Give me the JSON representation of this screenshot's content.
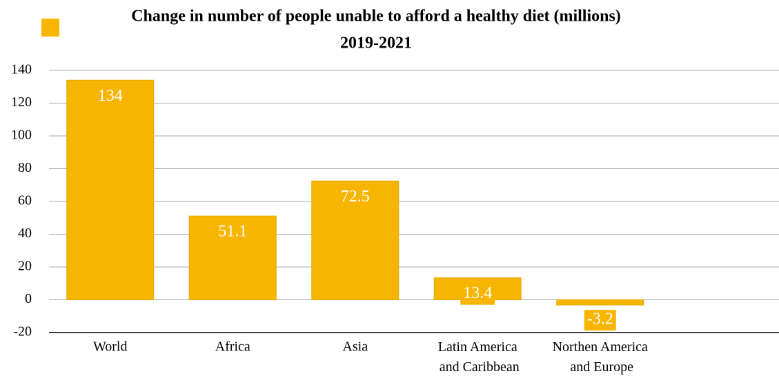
{
  "chart_data": {
    "type": "bar",
    "title": "Change in number of people unable to afford a healthy diet (millions)",
    "subtitle": "2019-2021",
    "categories": [
      "World",
      "Africa",
      "Asia",
      "Latin America and Caribbean",
      "Northen America and Europe"
    ],
    "values": [
      134,
      51.1,
      72.5,
      13.4,
      -3.2
    ],
    "color": "#f7b500",
    "ylim": [
      -20,
      140
    ],
    "yticks": [
      -20,
      0,
      20,
      40,
      60,
      80,
      100,
      120,
      140
    ],
    "grid": true
  }
}
